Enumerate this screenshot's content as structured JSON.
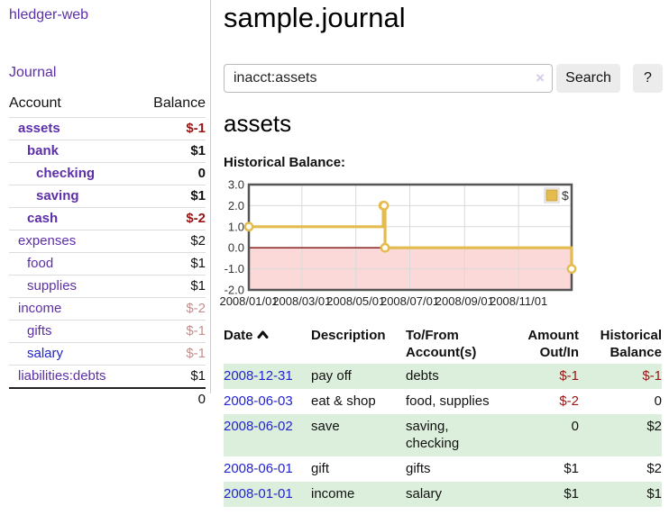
{
  "colors": {
    "purple": "#5c2fa8",
    "blue": "#2323d0",
    "negative": "#991414",
    "dim_negative": "#c48f8f",
    "row_green": "#dcefdc",
    "chart_gold": "#e3bb4f",
    "negative_region_pink": "#fbd9d9",
    "zero_line_red": "#7d0b0b"
  },
  "sidebar": {
    "app_title": "hledger-web",
    "nav_journal": "Journal",
    "accounts_header": {
      "account": "Account",
      "balance": "Balance"
    },
    "accounts": [
      {
        "name": "assets",
        "balance": "$-1",
        "level": 1,
        "strong": true
      },
      {
        "name": "bank",
        "balance": "$1",
        "level": 2,
        "strong": true
      },
      {
        "name": "checking",
        "balance": "0",
        "level": 3,
        "strong": true
      },
      {
        "name": "saving",
        "balance": "$1",
        "level": 3,
        "strong": true
      },
      {
        "name": "cash",
        "balance": "$-2",
        "level": 2,
        "strong": true
      },
      {
        "name": "expenses",
        "balance": "$2",
        "level": 1
      },
      {
        "name": "food",
        "balance": "$1",
        "level": 2
      },
      {
        "name": "supplies",
        "balance": "$1",
        "level": 2
      },
      {
        "name": "income",
        "balance": "$-2",
        "level": 1,
        "dim": true
      },
      {
        "name": "gifts",
        "balance": "$-1",
        "level": 2,
        "dim": true
      },
      {
        "name": "salary",
        "balance": "$-1",
        "level": 2,
        "dim": true,
        "blue": true
      },
      {
        "name": "liabilities:debts",
        "balance": "$1",
        "level": 1
      }
    ],
    "total": "0"
  },
  "header": {
    "title": "sample.journal"
  },
  "search": {
    "value": "inacct:assets",
    "clear_label": "×",
    "button_label": "Search",
    "help_label": "?"
  },
  "main": {
    "account_heading": "assets",
    "chart_label": "Historical Balance:"
  },
  "chart_data": {
    "type": "line",
    "title": "Historical Balance:",
    "step": true,
    "series": [
      {
        "name": "$",
        "points": [
          [
            "2008-01-01",
            1
          ],
          [
            "2008-06-01",
            2
          ],
          [
            "2008-06-02",
            2
          ],
          [
            "2008-06-03",
            0
          ],
          [
            "2008-12-31",
            -1
          ]
        ]
      }
    ],
    "x_range": [
      "2008-01-01",
      "2008-12-31"
    ],
    "ylim": [
      -2,
      3
    ],
    "y_ticks": [
      3.0,
      2.0,
      1.0,
      0.0,
      -1.0,
      -2.0
    ],
    "x_tick_labels": [
      "2008/01/01",
      "2008/03/01",
      "2008/05/01",
      "2008/07/01",
      "2008/09/01",
      "2008/11/01"
    ],
    "grid": true,
    "legend": {
      "label": "$",
      "position": "top-right"
    },
    "negative_region_shaded": true
  },
  "register": {
    "columns": [
      {
        "label": "Date",
        "sorted": "asc"
      },
      {
        "label": "Description"
      },
      {
        "label": "To/From Account(s)"
      },
      {
        "label": "Amount Out/In"
      },
      {
        "label": "Historical Balance"
      }
    ],
    "rows": [
      {
        "date": "2008-12-31",
        "description": "pay off",
        "accounts": "debts",
        "amount": "$-1",
        "balance": "$-1",
        "shaded": true
      },
      {
        "date": "2008-06-03",
        "description": "eat & shop",
        "accounts": "food, supplies",
        "amount": "$-2",
        "balance": "0",
        "shaded": false
      },
      {
        "date": "2008-06-02",
        "description": "save",
        "accounts": "saving, checking",
        "amount": "0",
        "balance": "$2",
        "shaded": true
      },
      {
        "date": "2008-06-01",
        "description": "gift",
        "accounts": "gifts",
        "amount": "$1",
        "balance": "$2",
        "shaded": false
      },
      {
        "date": "2008-01-01",
        "description": "income",
        "accounts": "salary",
        "amount": "$1",
        "balance": "$1",
        "shaded": true
      }
    ]
  }
}
